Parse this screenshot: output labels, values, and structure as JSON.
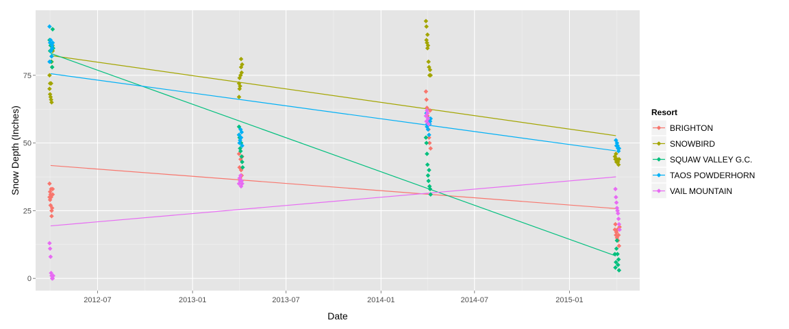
{
  "chart_data": {
    "type": "scatter",
    "xlabel": "Date",
    "ylabel": "Snow Depth (Inches)",
    "x_tick_labels": [
      "2012-07",
      "2013-01",
      "2013-07",
      "2014-01",
      "2014-07",
      "2015-01"
    ],
    "x_tick_dates": [
      "2012-07-01",
      "2013-01-01",
      "2013-07-01",
      "2014-01-01",
      "2014-07-01",
      "2015-01-01"
    ],
    "y_ticks": [
      0,
      25,
      50,
      75
    ],
    "ylim": [
      -4.5,
      99
    ],
    "xlim": [
      "2012-03-03",
      "2015-05-17"
    ],
    "grid": true,
    "panel_background": "#e5e5e5",
    "legend_title": "Resort",
    "legend_position": "right",
    "series": [
      {
        "name": "BRIGHTON",
        "color": "#F8766D",
        "trend": [
          [
            "2012-04-01",
            41.7
          ],
          [
            "2015-04-01",
            25.8
          ]
        ],
        "points": [
          [
            "2012-03-30",
            35
          ],
          [
            "2012-03-30",
            30
          ],
          [
            "2012-03-31",
            32
          ],
          [
            "2012-03-31",
            29
          ],
          [
            "2012-04-01",
            31
          ],
          [
            "2012-04-01",
            27
          ],
          [
            "2012-04-02",
            33
          ],
          [
            "2012-04-02",
            30
          ],
          [
            "2012-04-03",
            25
          ],
          [
            "2012-04-03",
            23
          ],
          [
            "2012-04-04",
            26
          ],
          [
            "2012-04-05",
            31
          ],
          [
            "2012-04-05",
            33
          ],
          [
            "2013-04-01",
            46
          ],
          [
            "2013-04-02",
            41
          ],
          [
            "2013-04-03",
            37
          ],
          [
            "2013-04-04",
            44
          ],
          [
            "2013-04-05",
            40
          ],
          [
            "2013-04-06",
            38
          ],
          [
            "2013-04-07",
            45
          ],
          [
            "2014-03-29",
            69
          ],
          [
            "2014-03-30",
            66
          ],
          [
            "2014-03-31",
            63
          ],
          [
            "2014-04-01",
            60
          ],
          [
            "2014-04-02",
            58
          ],
          [
            "2014-04-03",
            55
          ],
          [
            "2014-04-04",
            52
          ],
          [
            "2014-04-05",
            50
          ],
          [
            "2014-04-06",
            62
          ],
          [
            "2014-04-07",
            48
          ],
          [
            "2015-03-30",
            18
          ],
          [
            "2015-03-31",
            20
          ],
          [
            "2015-04-01",
            16
          ],
          [
            "2015-04-02",
            17
          ],
          [
            "2015-04-03",
            15
          ],
          [
            "2015-04-04",
            18
          ],
          [
            "2015-04-05",
            14
          ],
          [
            "2015-04-06",
            16
          ],
          [
            "2015-04-07",
            12
          ],
          [
            "2015-04-08",
            19
          ]
        ]
      },
      {
        "name": "SNOWBIRD",
        "color": "#A3A500",
        "trend": [
          [
            "2012-04-01",
            82.3
          ],
          [
            "2015-04-01",
            52.7
          ]
        ],
        "points": [
          [
            "2012-03-30",
            70
          ],
          [
            "2012-03-30",
            75
          ],
          [
            "2012-03-31",
            72
          ],
          [
            "2012-03-31",
            68
          ],
          [
            "2012-04-01",
            67
          ],
          [
            "2012-04-02",
            66
          ],
          [
            "2012-04-02",
            72
          ],
          [
            "2012-04-03",
            65
          ],
          [
            "2012-04-03",
            80
          ],
          [
            "2012-04-04",
            78
          ],
          [
            "2012-04-05",
            84
          ],
          [
            "2012-04-05",
            86
          ],
          [
            "2013-04-01",
            67
          ],
          [
            "2013-04-01",
            72
          ],
          [
            "2013-04-02",
            74
          ],
          [
            "2013-04-02",
            70
          ],
          [
            "2013-04-03",
            71
          ],
          [
            "2013-04-04",
            75
          ],
          [
            "2013-04-05",
            81
          ],
          [
            "2013-04-05",
            78
          ],
          [
            "2013-04-06",
            76
          ],
          [
            "2013-04-07",
            79
          ],
          [
            "2014-03-29",
            95
          ],
          [
            "2014-03-30",
            93
          ],
          [
            "2014-03-30",
            88
          ],
          [
            "2014-03-31",
            87
          ],
          [
            "2014-04-01",
            90
          ],
          [
            "2014-04-01",
            85
          ],
          [
            "2014-04-02",
            86
          ],
          [
            "2014-04-03",
            80
          ],
          [
            "2014-04-04",
            78
          ],
          [
            "2014-04-05",
            75
          ],
          [
            "2014-04-06",
            77
          ],
          [
            "2014-04-07",
            75
          ],
          [
            "2015-03-30",
            45
          ],
          [
            "2015-03-31",
            44
          ],
          [
            "2015-04-01",
            46
          ],
          [
            "2015-04-02",
            43
          ],
          [
            "2015-04-03",
            44
          ],
          [
            "2015-04-04",
            49
          ],
          [
            "2015-04-05",
            43
          ],
          [
            "2015-04-06",
            42
          ],
          [
            "2015-04-07",
            44
          ]
        ]
      },
      {
        "name": "SQUAW VALLEY G.C.",
        "color": "#00BF7D",
        "trend": [
          [
            "2012-04-01",
            83.1
          ],
          [
            "2015-04-01",
            8.3
          ]
        ],
        "points": [
          [
            "2012-03-30",
            88
          ],
          [
            "2012-03-31",
            84
          ],
          [
            "2012-04-01",
            86
          ],
          [
            "2012-04-02",
            80
          ],
          [
            "2012-04-03",
            82
          ],
          [
            "2012-04-04",
            78
          ],
          [
            "2012-04-05",
            92
          ],
          [
            "2012-04-06",
            85
          ],
          [
            "2013-04-01",
            56
          ],
          [
            "2013-04-01",
            53
          ],
          [
            "2013-04-02",
            52
          ],
          [
            "2013-04-03",
            48
          ],
          [
            "2013-04-04",
            47
          ],
          [
            "2013-04-05",
            50
          ],
          [
            "2013-04-06",
            45
          ],
          [
            "2013-04-07",
            43
          ],
          [
            "2013-04-08",
            41
          ],
          [
            "2014-03-29",
            52
          ],
          [
            "2014-03-30",
            50
          ],
          [
            "2014-03-31",
            46
          ],
          [
            "2014-04-01",
            42
          ],
          [
            "2014-04-02",
            38
          ],
          [
            "2014-04-03",
            36
          ],
          [
            "2014-04-04",
            40
          ],
          [
            "2014-04-05",
            34
          ],
          [
            "2014-04-06",
            33
          ],
          [
            "2014-04-07",
            31
          ],
          [
            "2015-03-30",
            9
          ],
          [
            "2015-03-31",
            4
          ],
          [
            "2015-04-01",
            6
          ],
          [
            "2015-04-02",
            11
          ],
          [
            "2015-04-03",
            14
          ],
          [
            "2015-04-04",
            9
          ],
          [
            "2015-04-05",
            5
          ],
          [
            "2015-04-06",
            7
          ],
          [
            "2015-04-07",
            3
          ]
        ]
      },
      {
        "name": "TAOS POWDERHORN",
        "color": "#00B0F6",
        "trend": [
          [
            "2012-04-01",
            75.6
          ],
          [
            "2015-04-01",
            47.1
          ]
        ],
        "points": [
          [
            "2012-03-30",
            93
          ],
          [
            "2012-03-30",
            80
          ],
          [
            "2012-03-31",
            87
          ],
          [
            "2012-04-01",
            88
          ],
          [
            "2012-04-02",
            84
          ],
          [
            "2012-04-03",
            82
          ],
          [
            "2012-04-04",
            86
          ],
          [
            "2012-04-04",
            85
          ],
          [
            "2012-04-05",
            87
          ],
          [
            "2013-04-01",
            53
          ],
          [
            "2013-04-02",
            50
          ],
          [
            "2013-04-03",
            51
          ],
          [
            "2013-04-04",
            55
          ],
          [
            "2013-04-05",
            52
          ],
          [
            "2013-04-06",
            54
          ],
          [
            "2013-04-07",
            49
          ],
          [
            "2014-03-30",
            61
          ],
          [
            "2014-03-31",
            56
          ],
          [
            "2014-04-01",
            57
          ],
          [
            "2014-04-02",
            55
          ],
          [
            "2014-04-03",
            59
          ],
          [
            "2014-04-04",
            53
          ],
          [
            "2014-04-05",
            57
          ],
          [
            "2014-04-06",
            58
          ],
          [
            "2014-04-07",
            59
          ],
          [
            "2015-04-01",
            51
          ],
          [
            "2015-04-02",
            49
          ],
          [
            "2015-04-03",
            50
          ],
          [
            "2015-04-04",
            49
          ],
          [
            "2015-04-05",
            48
          ],
          [
            "2015-04-06",
            47
          ],
          [
            "2015-04-07",
            48
          ]
        ]
      },
      {
        "name": "VAIL MOUNTAIN",
        "color": "#E76BF3",
        "trend": [
          [
            "2012-04-01",
            19.4
          ],
          [
            "2015-04-01",
            37.5
          ]
        ],
        "points": [
          [
            "2012-03-30",
            13
          ],
          [
            "2012-03-31",
            11
          ],
          [
            "2012-04-01",
            8
          ],
          [
            "2012-04-02",
            2
          ],
          [
            "2012-04-03",
            1
          ],
          [
            "2012-04-04",
            0
          ],
          [
            "2012-04-05",
            0
          ],
          [
            "2012-04-06",
            1
          ],
          [
            "2013-04-01",
            35
          ],
          [
            "2013-04-02",
            37
          ],
          [
            "2013-04-03",
            36
          ],
          [
            "2013-04-04",
            38
          ],
          [
            "2013-04-05",
            34
          ],
          [
            "2013-04-06",
            36
          ],
          [
            "2013-04-07",
            35
          ],
          [
            "2014-03-29",
            60
          ],
          [
            "2014-03-30",
            58
          ],
          [
            "2014-03-31",
            62
          ],
          [
            "2014-04-01",
            61
          ],
          [
            "2014-04-02",
            59
          ],
          [
            "2014-04-03",
            57
          ],
          [
            "2015-03-31",
            33
          ],
          [
            "2015-04-01",
            30
          ],
          [
            "2015-04-02",
            28
          ],
          [
            "2015-04-03",
            26
          ],
          [
            "2015-04-04",
            25
          ],
          [
            "2015-04-05",
            24
          ],
          [
            "2015-04-06",
            22
          ],
          [
            "2015-04-07",
            20
          ],
          [
            "2015-04-08",
            18
          ]
        ]
      }
    ]
  }
}
